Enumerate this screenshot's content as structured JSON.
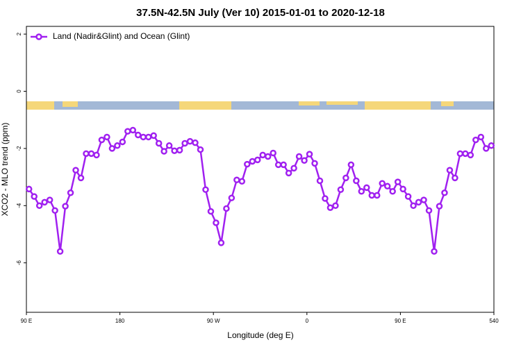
{
  "chart_data": {
    "type": "line",
    "title": "37.5N-42.5N July (Ver 10)   2015-01-01 to 2020-12-18",
    "x_label": "Longitude (deg E)",
    "y_label": "XCO2 - MLO trend (ppm)",
    "x": [
      92.5,
      97.5,
      102.5,
      107.5,
      112.5,
      117.5,
      122.5,
      127.5,
      132.5,
      137.5,
      142.5,
      147.5,
      152.5,
      157.5,
      162.5,
      167.5,
      172.5,
      177.5,
      182.5,
      187.5,
      192.5,
      197.5,
      202.5,
      207.5,
      212.5,
      217.5,
      222.5,
      227.5,
      232.5,
      237.5,
      242.5,
      247.5,
      252.5,
      257.5,
      262.5,
      267.5,
      272.5,
      277.5,
      282.5,
      287.5,
      292.5,
      297.5,
      302.5,
      307.5,
      312.5,
      317.5,
      322.5,
      327.5,
      332.5,
      337.5,
      342.5,
      347.5,
      352.5,
      357.5,
      362.5,
      367.5,
      372.5,
      377.5,
      382.5,
      387.5,
      392.5,
      397.5,
      402.5,
      407.5,
      412.5,
      417.5,
      422.5,
      427.5,
      432.5,
      437.5,
      442.5,
      447.5,
      452.5,
      457.5,
      462.5,
      467.5,
      472.5,
      477.5,
      482.5,
      487.5,
      492.5,
      497.5,
      502.5,
      507.5,
      512.5,
      517.5,
      522.5,
      527.5,
      532.5,
      537.5
    ],
    "series": [
      {
        "name": "Land (Nadir&Glint) and Ocean (Glint)",
        "color": "#a020f0",
        "values": [
          -3.42,
          -3.68,
          -4.0,
          -3.88,
          -3.8,
          -4.17,
          -5.6,
          -4.02,
          -3.55,
          -2.76,
          -3.03,
          -2.18,
          -2.18,
          -2.23,
          -1.7,
          -1.6,
          -2.0,
          -1.9,
          -1.77,
          -1.4,
          -1.36,
          -1.53,
          -1.6,
          -1.6,
          -1.55,
          -1.82,
          -2.1,
          -1.9,
          -2.08,
          -2.06,
          -1.82,
          -1.75,
          -1.8,
          -2.04,
          -3.44,
          -4.2,
          -4.6,
          -5.3,
          -4.1,
          -3.73,
          -3.1,
          -3.15,
          -2.55,
          -2.45,
          -2.4,
          -2.23,
          -2.28,
          -2.16,
          -2.57,
          -2.57,
          -2.86,
          -2.69,
          -2.28,
          -2.42,
          -2.2,
          -2.52,
          -3.13,
          -3.75,
          -4.07,
          -4.0,
          -3.44,
          -3.03,
          -2.57,
          -3.13,
          -3.5,
          -3.37,
          -3.64,
          -3.64,
          -3.22,
          -3.32,
          -3.5,
          -3.17,
          -3.42,
          -3.68,
          -4.0,
          -3.88,
          -3.8,
          -4.17,
          -5.6,
          -4.02,
          -3.55,
          -2.76,
          -3.03,
          -2.18,
          -2.18,
          -2.23,
          -1.7,
          -1.6,
          -2.0,
          -1.9
        ]
      }
    ],
    "xlim": [
      90,
      540
    ],
    "xticks": [
      {
        "value": 90,
        "label": "90 E"
      },
      180,
      {
        "value": 270,
        "label": "90 W"
      },
      {
        "value": 360,
        "label": "0"
      },
      {
        "value": 450,
        "label": "90 E"
      },
      540
    ],
    "ylim": [
      -7.73,
      2.27
    ],
    "yticks": [
      2,
      0,
      -2,
      -4,
      -6
    ],
    "legend": "top-left"
  }
}
